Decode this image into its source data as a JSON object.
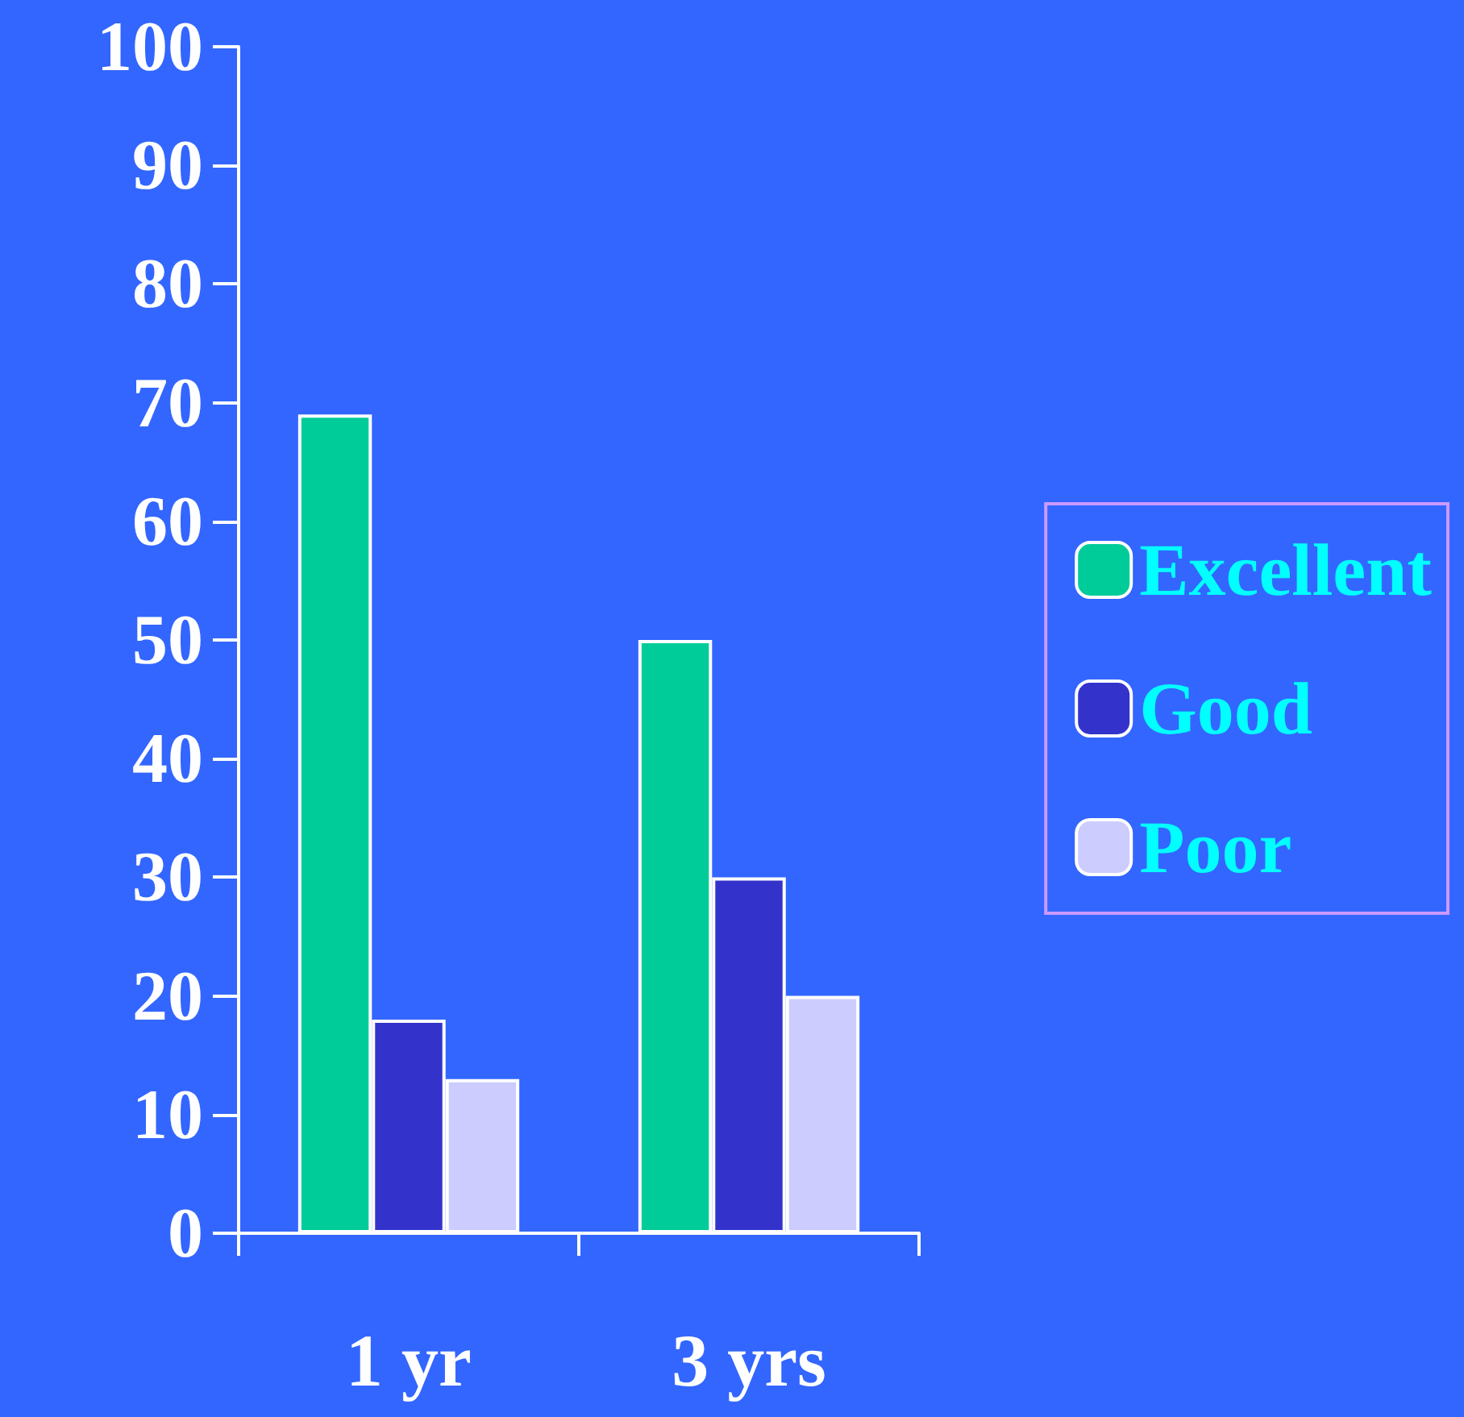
{
  "chart_data": {
    "type": "bar",
    "categories": [
      "1 yr",
      "3 yrs"
    ],
    "series": [
      {
        "name": "Excellent",
        "color": "#00cc99",
        "values": [
          69,
          50
        ]
      },
      {
        "name": "Good",
        "color": "#3333cc",
        "values": [
          18,
          30
        ]
      },
      {
        "name": "Poor",
        "color": "#ccccff",
        "values": [
          13,
          20
        ]
      }
    ],
    "ylim": [
      0,
      100
    ],
    "yticks": [
      0,
      10,
      20,
      30,
      40,
      50,
      60,
      70,
      80,
      90,
      100
    ],
    "grid": false,
    "legend": "right"
  }
}
